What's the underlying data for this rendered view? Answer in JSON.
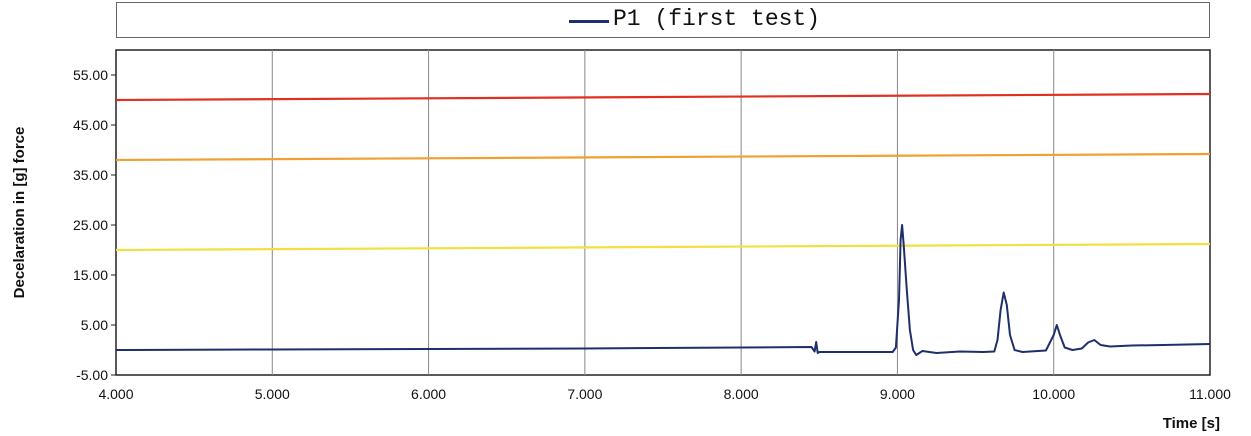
{
  "chart_data": {
    "type": "line",
    "xlabel": "Time [s]",
    "ylabel": "Decelaration in [g]  force",
    "xlim": [
      4.0,
      11.0
    ],
    "ylim": [
      -5.0,
      60.0
    ],
    "x_ticks": [
      "4.000",
      "5.000",
      "6.000",
      "7.000",
      "8.000",
      "9.000",
      "10.000",
      "11.000"
    ],
    "y_ticks": [
      "55.00",
      "45.00",
      "35.00",
      "25.00",
      "15.00",
      "5.00",
      "-5.00"
    ],
    "grid": "vertical",
    "legend_position": "top",
    "series": [
      {
        "name": "P1 (first test)",
        "color": "#1f2f6b",
        "points": [
          [
            4.0,
            0.0
          ],
          [
            5.0,
            0.1
          ],
          [
            6.0,
            0.2
          ],
          [
            7.0,
            0.3
          ],
          [
            8.0,
            0.5
          ],
          [
            8.45,
            0.6
          ],
          [
            8.47,
            -0.3
          ],
          [
            8.48,
            1.6
          ],
          [
            8.49,
            -0.6
          ],
          [
            8.5,
            -0.4
          ],
          [
            8.8,
            -0.4
          ],
          [
            8.97,
            -0.4
          ],
          [
            8.99,
            0.5
          ],
          [
            9.01,
            10.0
          ],
          [
            9.02,
            22.0
          ],
          [
            9.03,
            25.0
          ],
          [
            9.04,
            21.0
          ],
          [
            9.06,
            12.0
          ],
          [
            9.08,
            4.0
          ],
          [
            9.1,
            0.0
          ],
          [
            9.12,
            -1.0
          ],
          [
            9.16,
            -0.2
          ],
          [
            9.25,
            -0.6
          ],
          [
            9.4,
            -0.3
          ],
          [
            9.55,
            -0.4
          ],
          [
            9.62,
            -0.3
          ],
          [
            9.64,
            2.0
          ],
          [
            9.66,
            8.0
          ],
          [
            9.68,
            11.5
          ],
          [
            9.7,
            9.0
          ],
          [
            9.72,
            3.0
          ],
          [
            9.75,
            0.0
          ],
          [
            9.8,
            -0.4
          ],
          [
            9.95,
            -0.1
          ],
          [
            10.0,
            3.0
          ],
          [
            10.02,
            5.0
          ],
          [
            10.04,
            3.0
          ],
          [
            10.07,
            0.5
          ],
          [
            10.12,
            0.0
          ],
          [
            10.18,
            0.3
          ],
          [
            10.22,
            1.5
          ],
          [
            10.26,
            2.0
          ],
          [
            10.3,
            1.0
          ],
          [
            10.36,
            0.7
          ],
          [
            10.5,
            0.9
          ],
          [
            10.7,
            1.0
          ],
          [
            11.0,
            1.2
          ]
        ]
      },
      {
        "color": "#e03020",
        "points": [
          [
            4.0,
            50.0
          ],
          [
            11.0,
            51.2
          ]
        ]
      },
      {
        "color": "#f0a030",
        "points": [
          [
            4.0,
            38.0
          ],
          [
            11.0,
            39.2
          ]
        ]
      },
      {
        "color": "#f0e040",
        "points": [
          [
            4.0,
            20.0
          ],
          [
            11.0,
            21.2
          ]
        ]
      }
    ]
  }
}
